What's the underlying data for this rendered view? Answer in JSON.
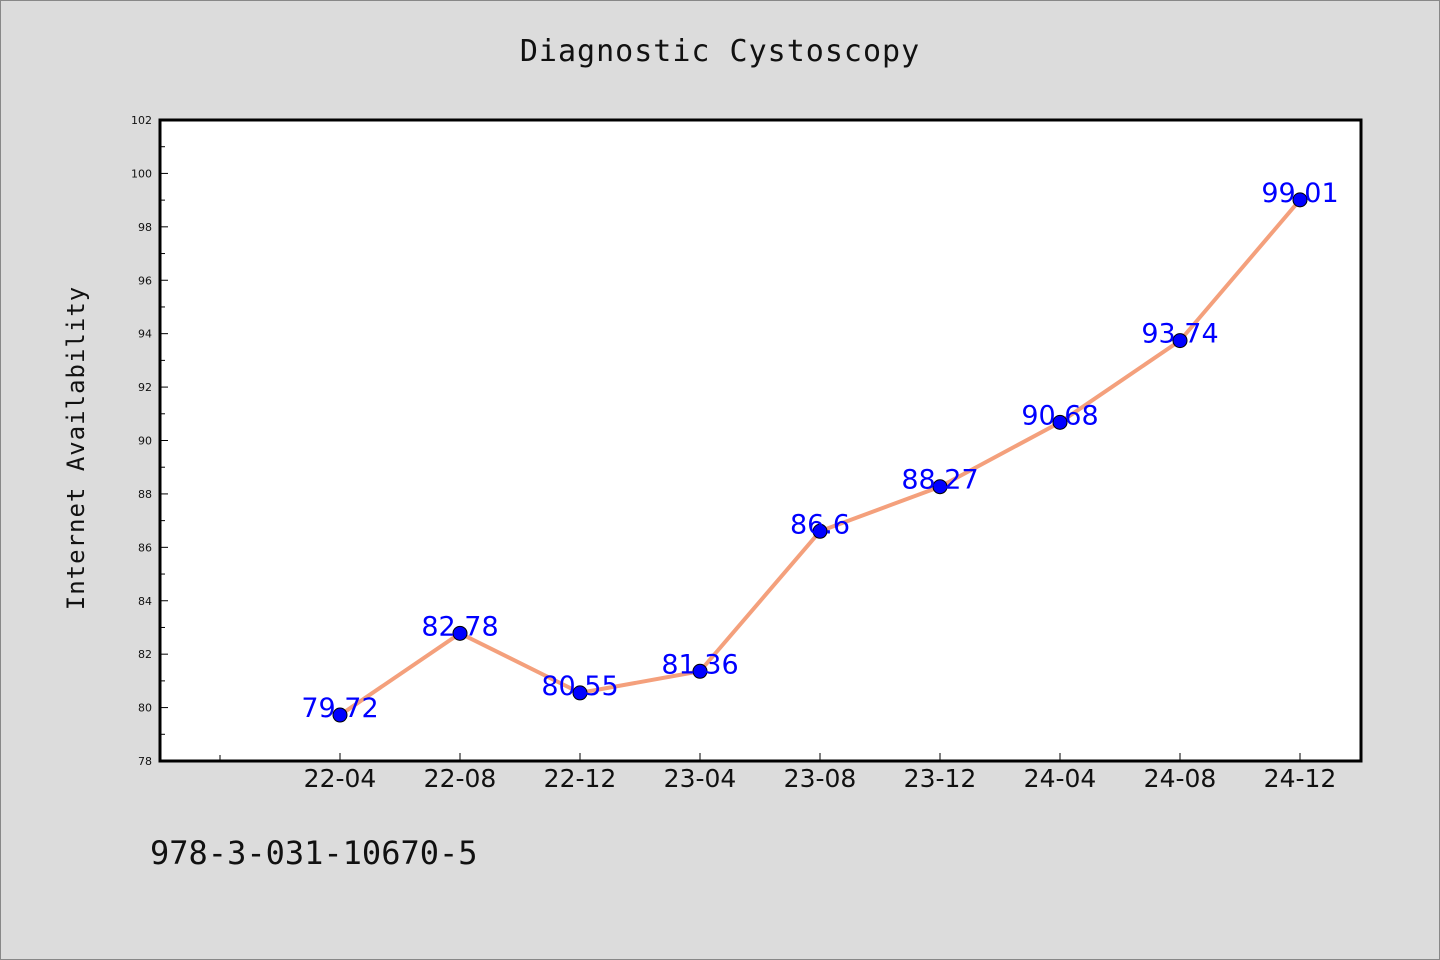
{
  "page": {
    "background": "#dcdcdc",
    "footer_text": "978-3-031-10670-5"
  },
  "chart_data": {
    "type": "line",
    "title": "Diagnostic Cystoscopy",
    "xlabel": "",
    "ylabel": "Internet Availability",
    "categories": [
      "22-04",
      "22-08",
      "22-12",
      "23-04",
      "23-08",
      "23-12",
      "24-04",
      "24-08",
      "24-12"
    ],
    "series": [
      {
        "values": [
          79.72,
          82.78,
          80.55,
          81.36,
          86.6,
          88.27,
          90.68,
          93.74,
          99.01
        ],
        "line_color": "#f4a07c",
        "marker_color": "#0000ff",
        "label_color": "#0000ff"
      }
    ],
    "data_labels": [
      "79.72",
      "82.78",
      "80.55",
      "81.36",
      "86.6",
      "88.27",
      "90.68",
      "93.74",
      "99.01"
    ],
    "ylim": [
      78,
      102
    ],
    "yticks": [
      78,
      80,
      82,
      84,
      86,
      88,
      90,
      92,
      94,
      96,
      98,
      100,
      102
    ],
    "grid": false,
    "legend": "none",
    "plot_background": "#ffffff"
  }
}
